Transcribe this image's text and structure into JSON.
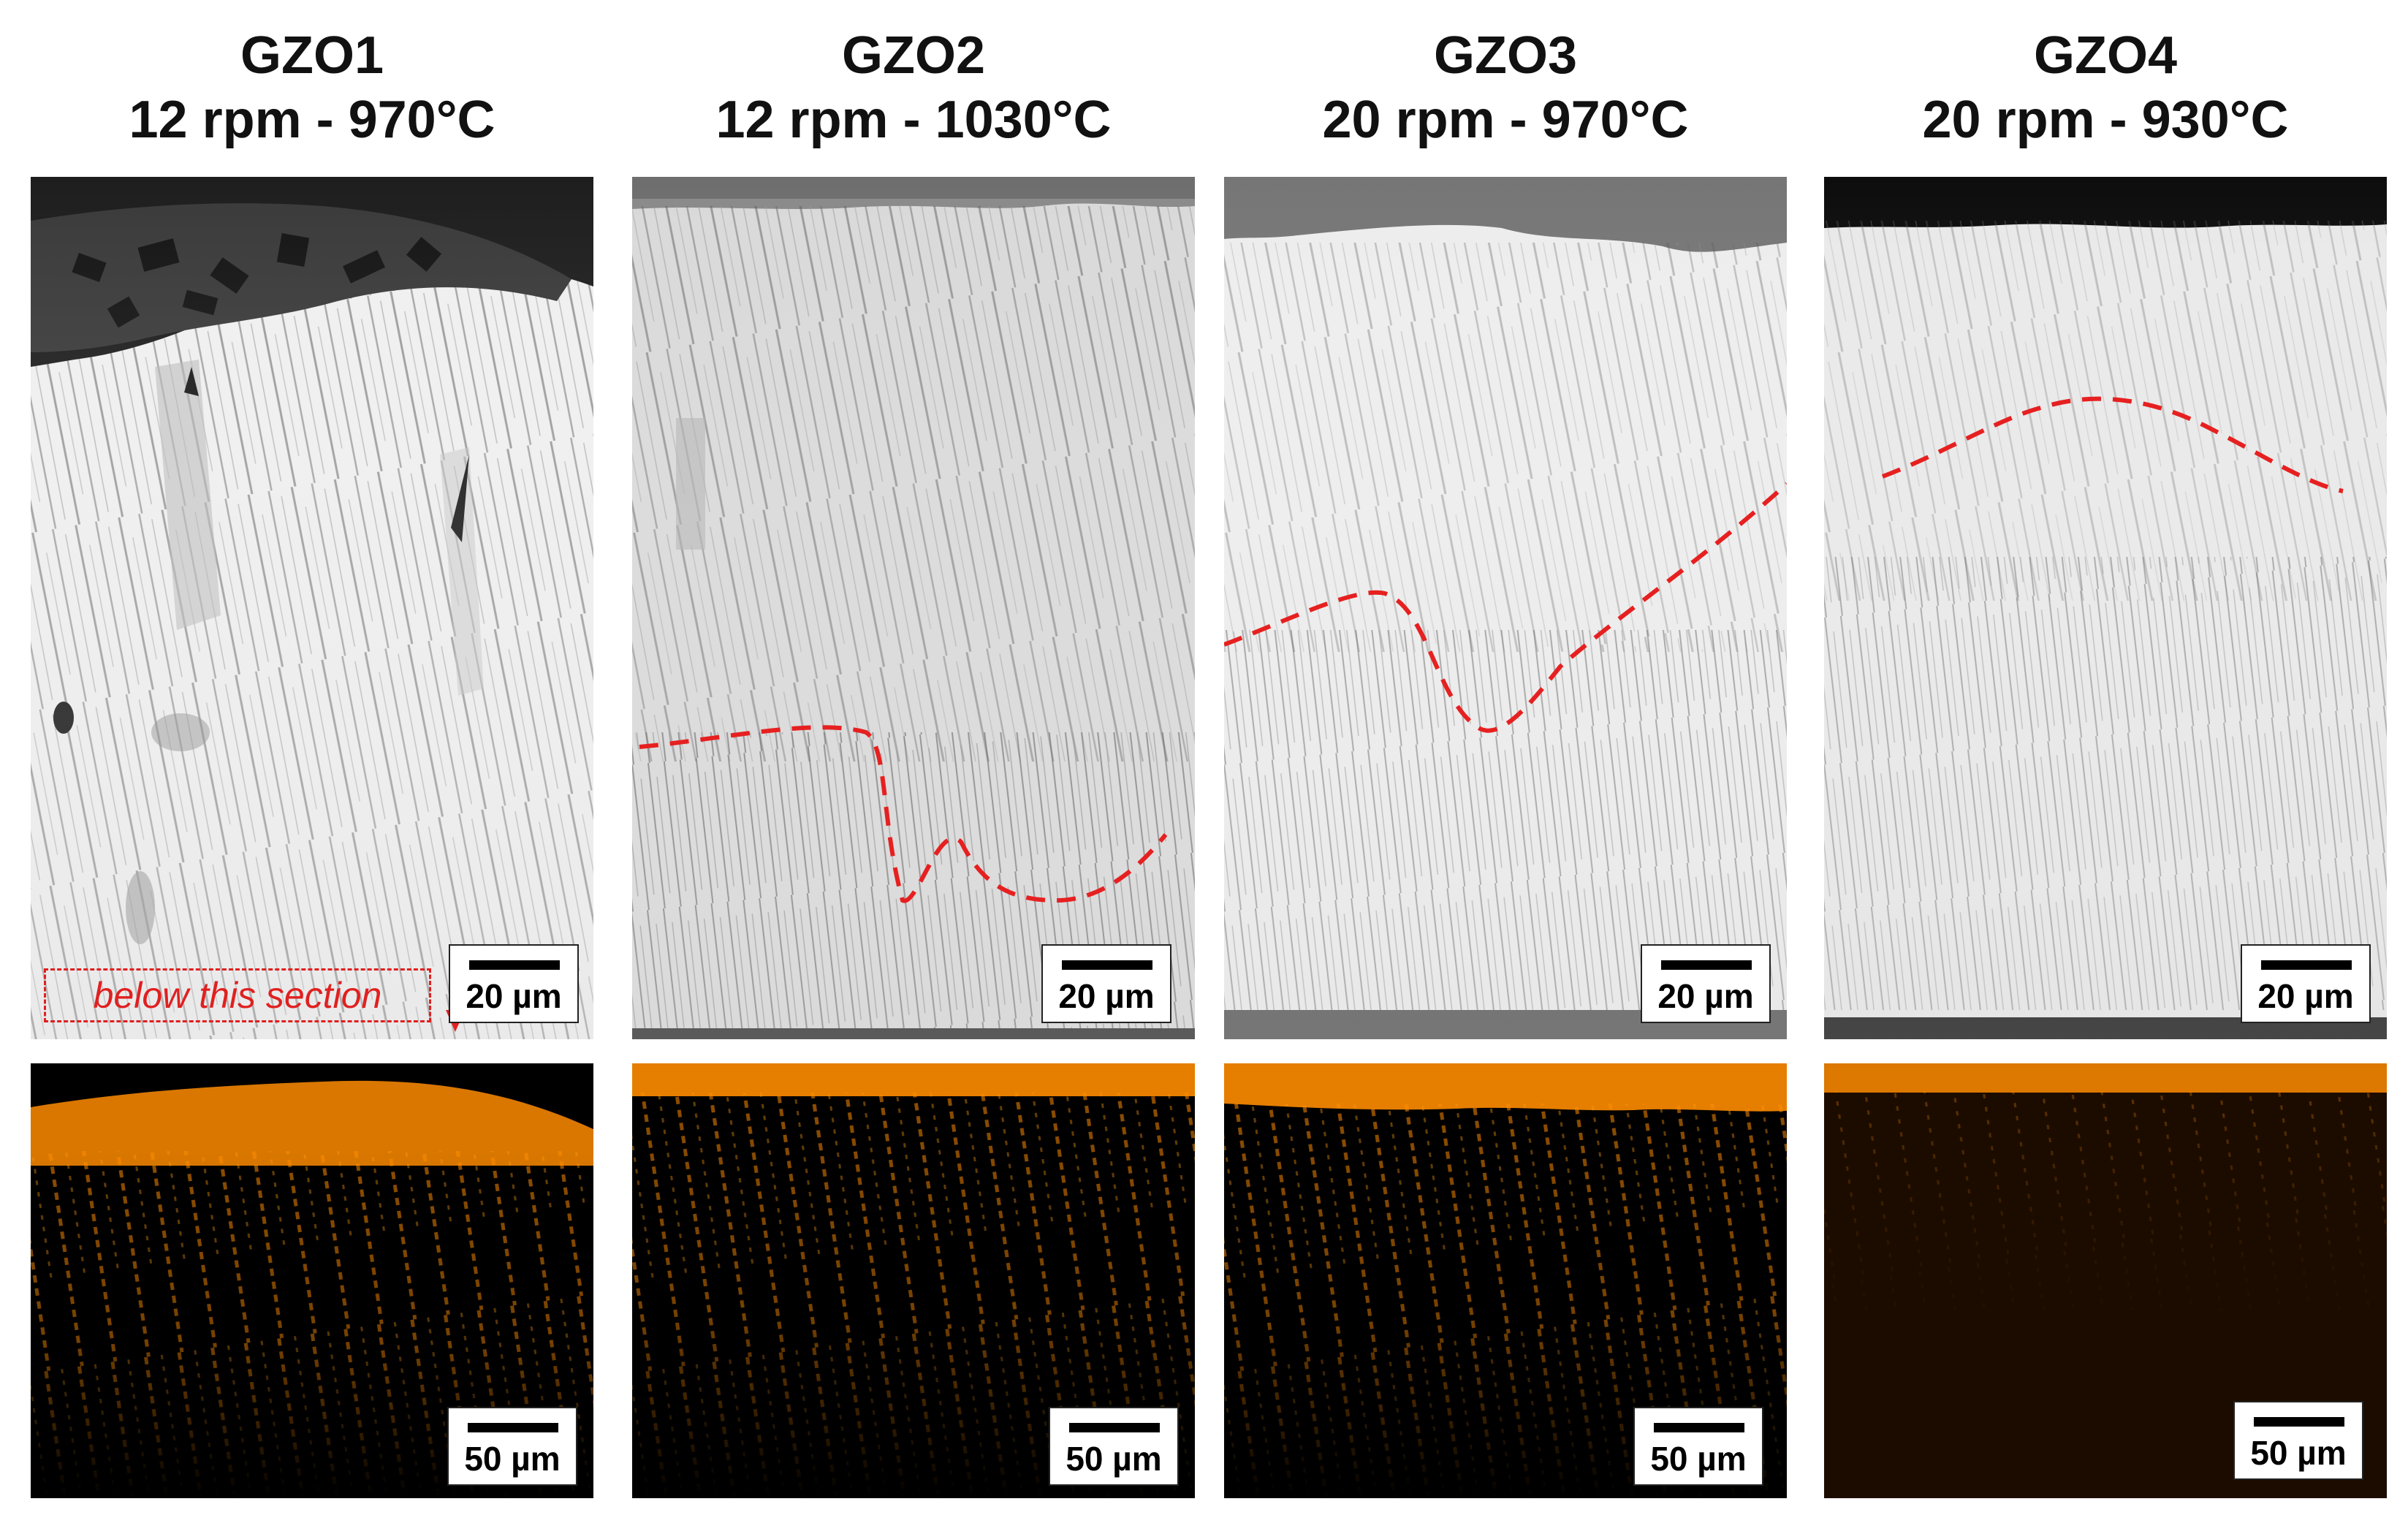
{
  "figure": {
    "columns": [
      {
        "sample": "GZO1",
        "conditions": "12 rpm - 970°C",
        "sem_scale": "20 µm",
        "eds_scale": "50 µm"
      },
      {
        "sample": "GZO2",
        "conditions": "12 rpm - 1030°C",
        "sem_scale": "20 µm",
        "eds_scale": "50 µm"
      },
      {
        "sample": "GZO3",
        "conditions": "20 rpm - 970°C",
        "sem_scale": "20 µm",
        "eds_scale": "50 µm"
      },
      {
        "sample": "GZO4",
        "conditions": "20 rpm - 930°C",
        "sem_scale": "20 µm",
        "eds_scale": "50 µm"
      }
    ],
    "annotation": "below this section",
    "colors": {
      "boundary_line": "#e62020",
      "eds_signal": "#ff8c00",
      "sem_bright": "#f2f2f2",
      "sem_dark": "#1a1a1a"
    }
  }
}
